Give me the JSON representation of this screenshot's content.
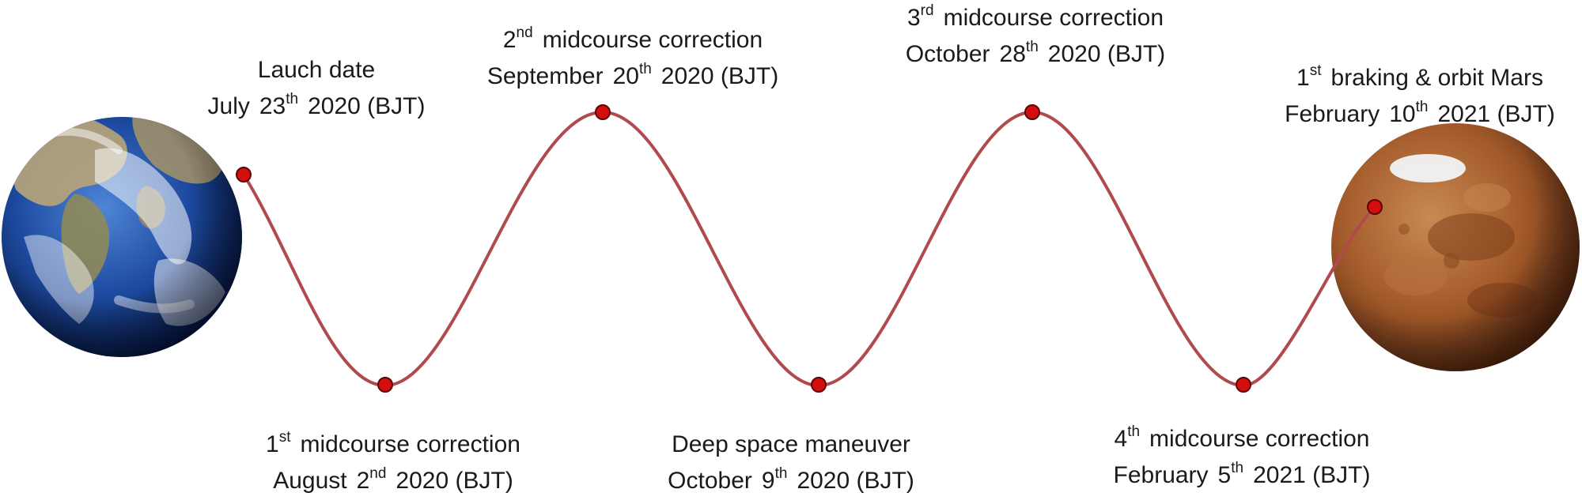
{
  "colors": {
    "trajectory": "#b04a4c",
    "marker_fill": "#d40d0d",
    "marker_stroke": "#5a0606",
    "earth_ocean": "#1d4aa0",
    "earth_land": "#b9a479",
    "earth_cloud": "#ffffff",
    "mars_surface": "#a35a2a",
    "mars_polar_cap": "#f2f4f6"
  },
  "icons": {
    "earth": "earth-globe-icon",
    "mars": "mars-globe-icon",
    "marker": "red-dot-marker-icon"
  },
  "events": [
    {
      "id": "launch",
      "title": {
        "pre": "Lauch date",
        "num": "",
        "sup": "",
        "post": ""
      },
      "date": {
        "pre": "July",
        "num": "23",
        "sup": "th",
        "post": "2020 (BJT)"
      }
    },
    {
      "id": "mcc1",
      "title": {
        "pre": "",
        "num": "1",
        "sup": "st",
        "post": "midcourse correction"
      },
      "date": {
        "pre": "August",
        "num": "2",
        "sup": "nd",
        "post": "2020 (BJT)"
      }
    },
    {
      "id": "mcc2",
      "title": {
        "pre": "",
        "num": "2",
        "sup": "nd",
        "post": "midcourse correction"
      },
      "date": {
        "pre": "September",
        "num": "20",
        "sup": "th",
        "post": "2020 (BJT)"
      }
    },
    {
      "id": "dsm",
      "title": {
        "pre": "Deep space maneuver",
        "num": "",
        "sup": "",
        "post": ""
      },
      "date": {
        "pre": "October",
        "num": "9",
        "sup": "th",
        "post": "2020 (BJT)"
      }
    },
    {
      "id": "mcc3",
      "title": {
        "pre": "",
        "num": "3",
        "sup": "rd",
        "post": "midcourse correction"
      },
      "date": {
        "pre": "October",
        "num": "28",
        "sup": "th",
        "post": "2020 (BJT)"
      }
    },
    {
      "id": "mcc4",
      "title": {
        "pre": "",
        "num": "4",
        "sup": "th",
        "post": "midcourse correction"
      },
      "date": {
        "pre": "February",
        "num": "5",
        "sup": "th",
        "post": "2021 (BJT)"
      }
    },
    {
      "id": "braking",
      "title": {
        "pre": "",
        "num": "1",
        "sup": "st",
        "post": "braking & orbit Mars"
      },
      "date": {
        "pre": "February",
        "num": "10",
        "sup": "th",
        "post": "2021 (BJT)"
      }
    }
  ]
}
